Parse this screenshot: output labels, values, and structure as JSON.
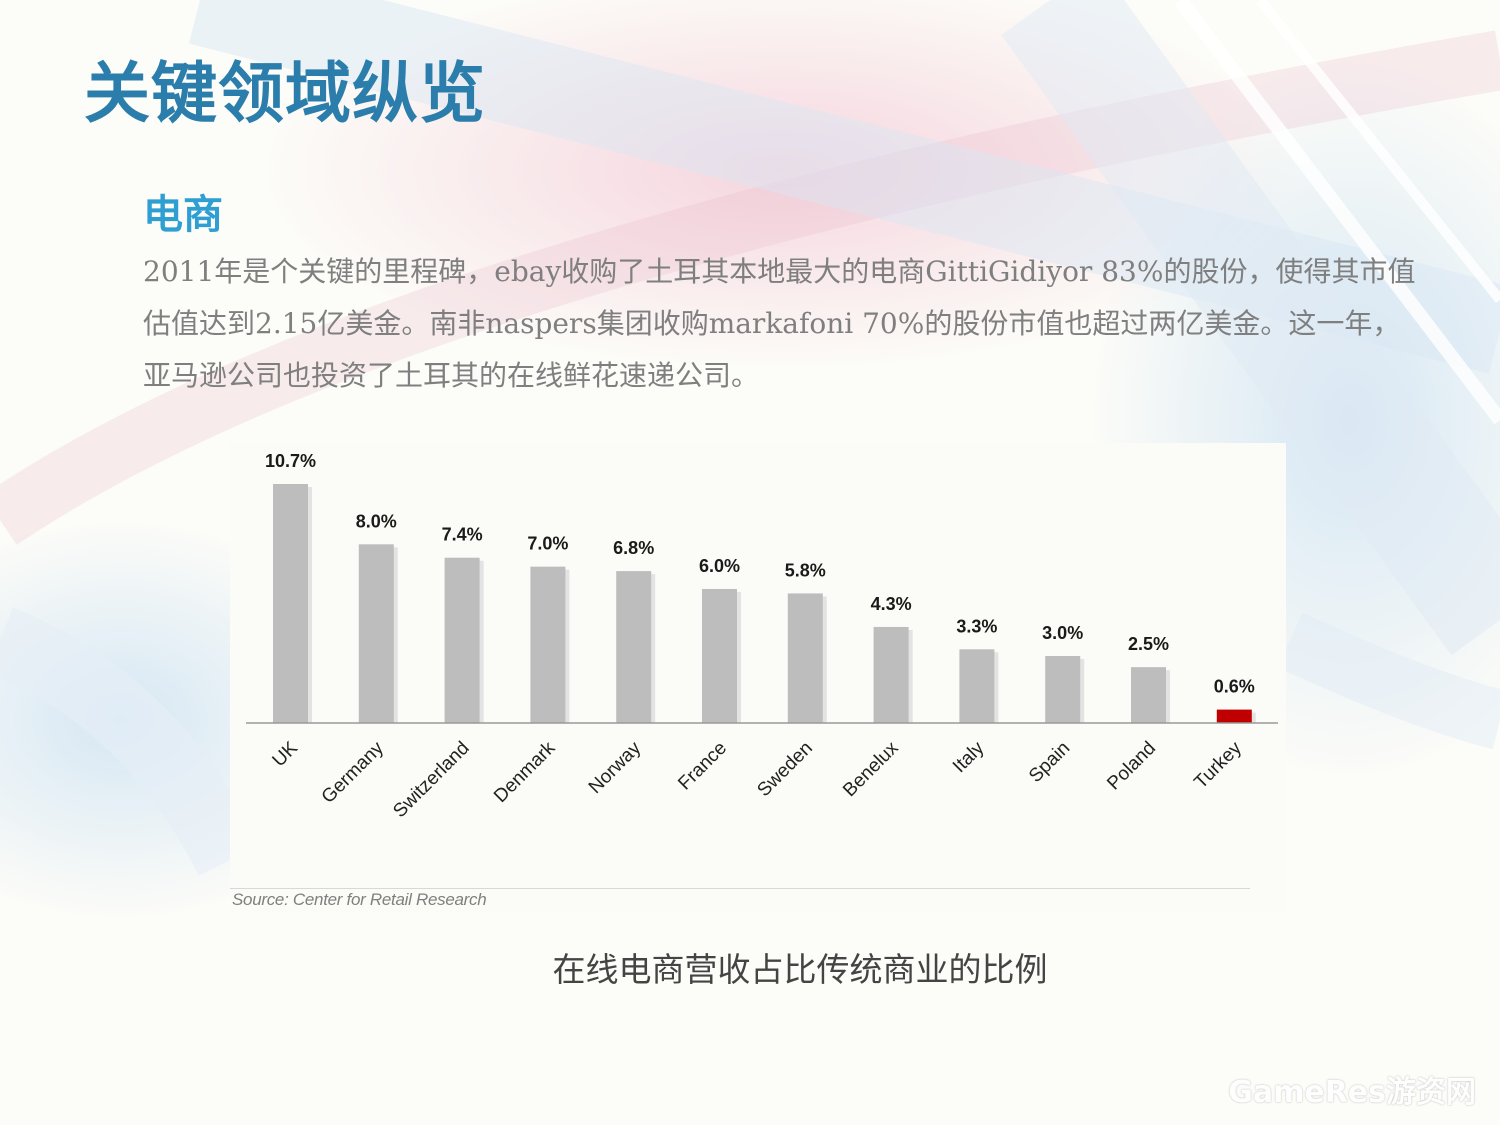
{
  "slide": {
    "title": "关键领域纵览",
    "section_heading": "电商",
    "body_text": "2011年是个关键的里程碑，ebay收购了土耳其本地最大的电商GittiGidiyor 83%的股份，使得其市值估值达到2.15亿美金。南非naspers集团收购markafoni 70%的股份市值也超过两亿美金。这一年，亚马逊公司也投资了土耳其的在线鲜花速递公司。",
    "chart_caption": "在线电商营收占比传统商业的比例",
    "watermark": "GameRes游资网"
  },
  "chart_data": {
    "type": "bar",
    "categories": [
      "UK",
      "Germany",
      "Switzerland",
      "Denmark",
      "Norway",
      "France",
      "Sweden",
      "Benelux",
      "Italy",
      "Spain",
      "Poland",
      "Turkey"
    ],
    "values": [
      10.7,
      8.0,
      7.4,
      7.0,
      6.8,
      6.0,
      5.8,
      4.3,
      3.3,
      3.0,
      2.5,
      0.6
    ],
    "value_labels": [
      "10.7%",
      "8.0%",
      "7.4%",
      "7.0%",
      "6.8%",
      "6.0%",
      "5.8%",
      "4.3%",
      "3.3%",
      "3.0%",
      "2.5%",
      "0.6%"
    ],
    "bar_color": "#bdbdbd",
    "highlight_category": "Turkey",
    "highlight_color": "#c00000",
    "ylim": [
      0,
      10.7
    ],
    "grid": false,
    "legend": "none",
    "source": "Source: Center for Retail Research"
  }
}
